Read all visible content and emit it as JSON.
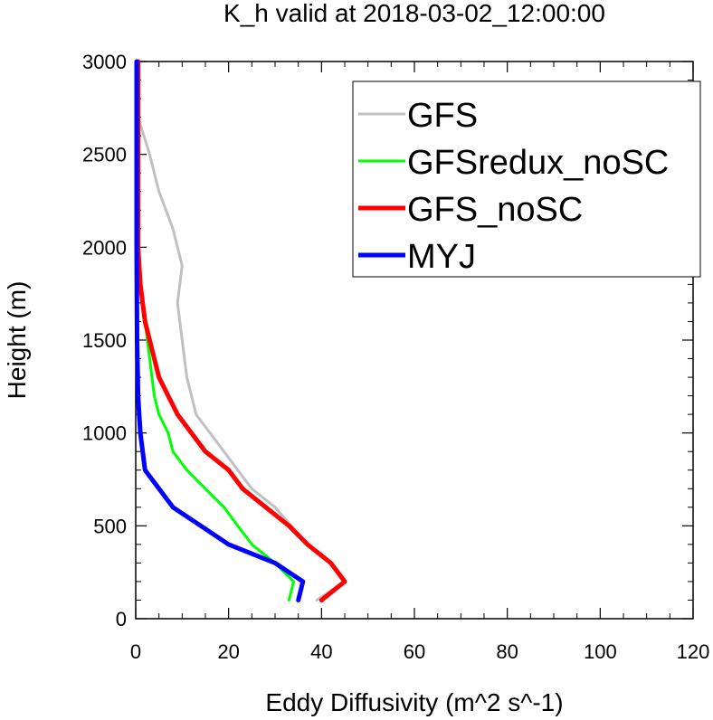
{
  "chart_data": {
    "type": "line",
    "title": "K_h valid at 2018-03-02_12:00:00",
    "xlabel": "Eddy Diffusivity (m^2 s^-1)",
    "ylabel": "Height (m)",
    "xlim": [
      0,
      120
    ],
    "ylim": [
      0,
      3000
    ],
    "xticks": [
      0,
      20,
      40,
      60,
      80,
      100,
      120
    ],
    "xtick_labels": [
      "0",
      "20",
      "40",
      "60",
      "80",
      "100",
      "120"
    ],
    "yticks": [
      0,
      500,
      1000,
      1500,
      2000,
      2500,
      3000
    ],
    "ytick_labels": [
      "0",
      "500",
      "1000",
      "1500",
      "2000",
      "2500",
      "3000"
    ],
    "grid": false,
    "legend_position": "top-right",
    "series": [
      {
        "name": "GFS",
        "color": "#c0c0c0",
        "points": [
          [
            39,
            100
          ],
          [
            45,
            200
          ],
          [
            42,
            300
          ],
          [
            37,
            400
          ],
          [
            30,
            600
          ],
          [
            25,
            700
          ],
          [
            19,
            900
          ],
          [
            13,
            1100
          ],
          [
            11,
            1300
          ],
          [
            10,
            1500
          ],
          [
            9,
            1700
          ],
          [
            10,
            1900
          ],
          [
            8,
            2100
          ],
          [
            5,
            2300
          ],
          [
            3,
            2500
          ],
          [
            0.5,
            2700
          ],
          [
            0.5,
            3000
          ]
        ]
      },
      {
        "name": "GFSredux_noSC",
        "color": "#00ff00",
        "points": [
          [
            33,
            100
          ],
          [
            34,
            200
          ],
          [
            30,
            300
          ],
          [
            25,
            400
          ],
          [
            19,
            600
          ],
          [
            15,
            700
          ],
          [
            11,
            800
          ],
          [
            8,
            900
          ],
          [
            7,
            1000
          ],
          [
            5,
            1100
          ],
          [
            4,
            1200
          ],
          [
            3,
            1400
          ],
          [
            2,
            1600
          ],
          [
            1,
            1800
          ],
          [
            0.5,
            2000
          ],
          [
            0.5,
            2500
          ],
          [
            0.3,
            3000
          ]
        ]
      },
      {
        "name": "GFS_noSC",
        "color": "#ff0000",
        "points": [
          [
            40,
            100
          ],
          [
            45,
            200
          ],
          [
            42,
            300
          ],
          [
            37,
            400
          ],
          [
            33,
            500
          ],
          [
            28,
            600
          ],
          [
            23,
            700
          ],
          [
            20,
            800
          ],
          [
            15,
            900
          ],
          [
            12,
            1000
          ],
          [
            9,
            1100
          ],
          [
            7,
            1200
          ],
          [
            5,
            1300
          ],
          [
            4,
            1400
          ],
          [
            3,
            1500
          ],
          [
            2,
            1600
          ],
          [
            1,
            1800
          ],
          [
            0.5,
            2000
          ],
          [
            0.5,
            3000
          ]
        ]
      },
      {
        "name": "MYJ",
        "color": "#0000ff",
        "points": [
          [
            35,
            100
          ],
          [
            36,
            200
          ],
          [
            30,
            300
          ],
          [
            20,
            400
          ],
          [
            14,
            500
          ],
          [
            8,
            600
          ],
          [
            5,
            700
          ],
          [
            2,
            800
          ],
          [
            1.5,
            900
          ],
          [
            1,
            1000
          ],
          [
            0.5,
            1200
          ],
          [
            0.3,
            1500
          ],
          [
            0.2,
            2000
          ],
          [
            0.2,
            3000
          ]
        ]
      }
    ]
  }
}
